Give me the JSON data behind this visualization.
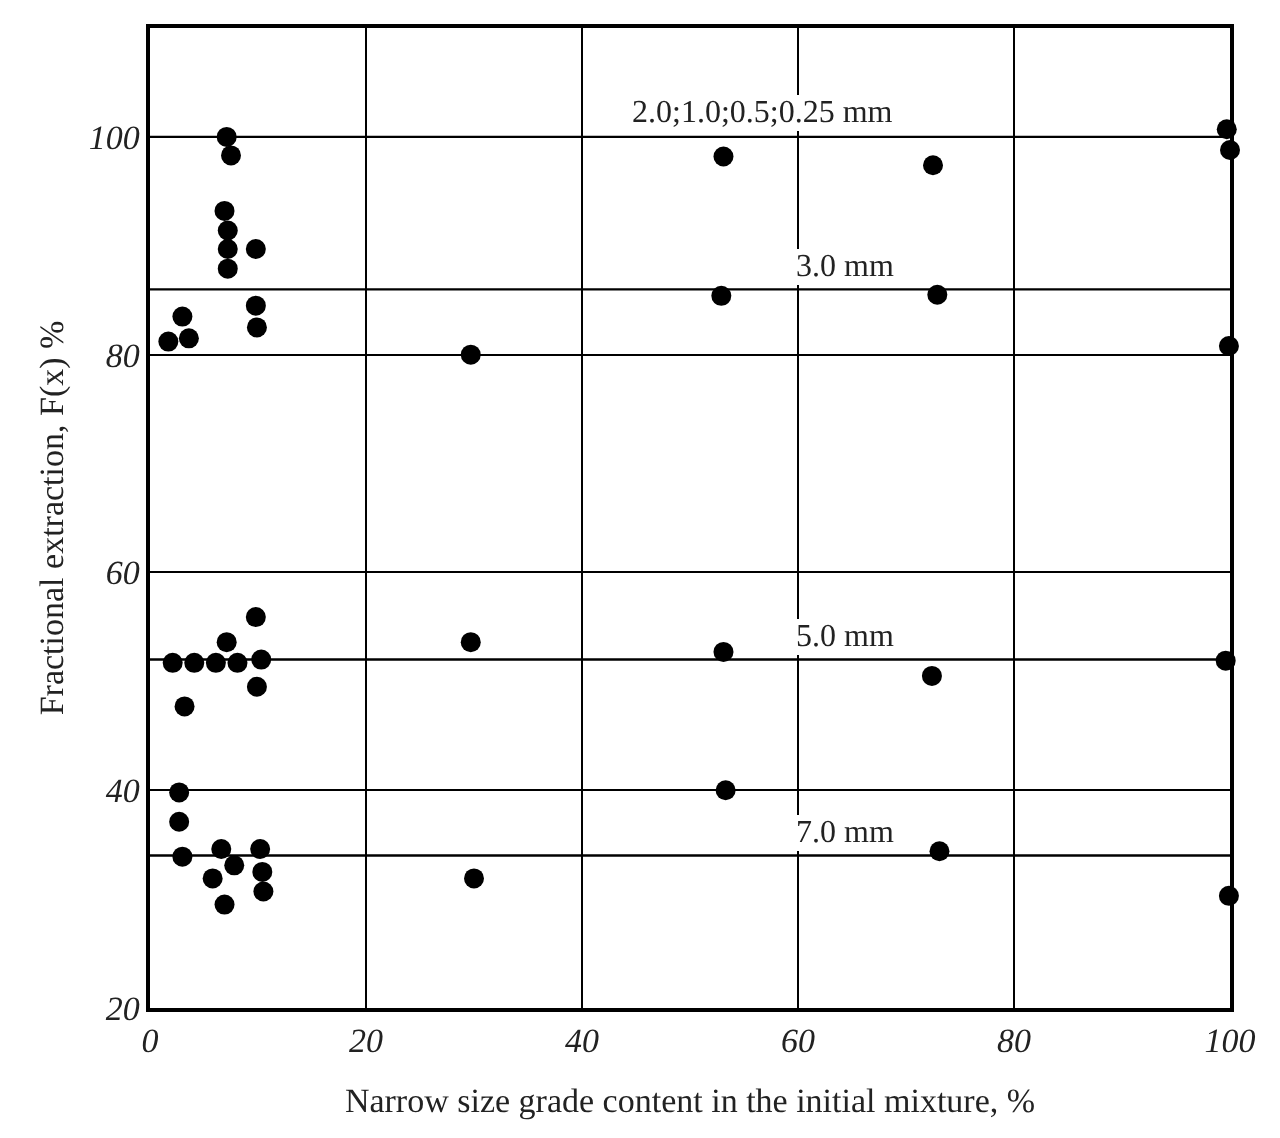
{
  "chart_data": {
    "type": "scatter",
    "xlabel": "Narrow size grade content in the initial mixture, %",
    "ylabel": "Fractional extraction, F(x) %",
    "x": [
      7.1,
      7.5,
      6.9,
      7.2,
      7.2,
      7.2,
      9.8,
      9.8,
      9.9,
      3.0,
      1.7,
      3.6,
      29.7,
      53.1,
      72.5,
      99.7,
      100,
      52.9,
      72.9,
      99.9,
      2.1,
      4.1,
      6.1,
      8.1,
      10.3,
      7.1,
      9.8,
      3.2,
      9.9,
      29.7,
      2.7,
      2.7,
      3.0,
      6.6,
      10.2,
      5.8,
      7.8,
      6.9,
      10.4,
      10.5,
      30.0,
      53.1,
      72.4,
      99.6,
      53.3,
      73.1,
      99.9
    ],
    "series": [
      {
        "color": "#000000",
        "values": [
          100,
          98.3,
          93.2,
          91.4,
          89.7,
          87.9,
          89.7,
          84.5,
          82.5,
          83.5,
          81.2,
          81.5,
          80,
          98.2,
          97.4,
          100.7,
          98.8,
          85.4,
          85.5,
          80.8,
          51.7,
          51.7,
          51.7,
          51.7,
          52.0,
          53.6,
          55.9,
          47.7,
          49.5,
          53.6,
          39.8,
          37.1,
          33.9,
          34.6,
          34.6,
          31.9,
          33.1,
          29.5,
          32.5,
          30.7,
          31.9,
          52.7,
          50.5,
          51.9,
          40,
          34.4,
          30.3
        ]
      }
    ],
    "xlim": [
      0,
      100
    ],
    "xticks": [
      0,
      20,
      40,
      60,
      80,
      100
    ],
    "ylim": [
      20,
      110
    ],
    "yticks": [
      20,
      40,
      60,
      80,
      100
    ],
    "ref_lines": [
      {
        "axis": "y",
        "value": 100,
        "label": "2.0;1.0;0.5;0.25 mm"
      },
      {
        "axis": "y",
        "value": 86,
        "label": "3.0 mm"
      },
      {
        "axis": "y",
        "value": 52,
        "label": "5.0 mm"
      },
      {
        "axis": "y",
        "value": 34,
        "label": "7.0 mm"
      }
    ],
    "grid": true,
    "marker": "circle",
    "legend": false
  }
}
